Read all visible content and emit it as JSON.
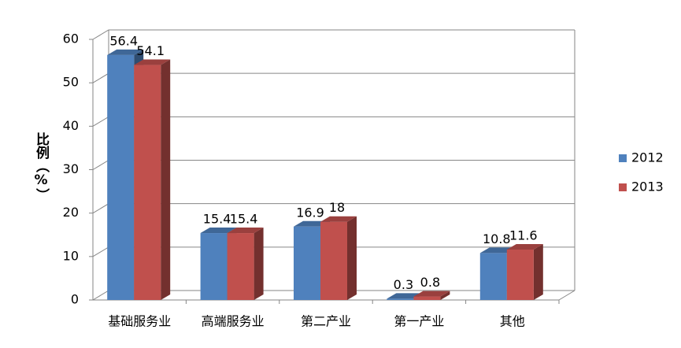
{
  "chart_data": {
    "type": "bar3d",
    "y_label": "比例（%）",
    "categories": [
      "基础服务业",
      "高端服务业",
      "第二产业",
      "第一产业",
      "其他"
    ],
    "series": [
      {
        "name": "2012",
        "color": "#4f81bd",
        "values": [
          56.4,
          15.4,
          16.9,
          0.3,
          10.8
        ]
      },
      {
        "name": "2013",
        "color": "#c0504d",
        "values": [
          54.1,
          15.4,
          18,
          0.8,
          11.6
        ]
      }
    ],
    "ylim": [
      0,
      60
    ],
    "yticks": [
      0,
      10,
      20,
      30,
      40,
      50,
      60
    ],
    "grid": true,
    "legend": "right"
  }
}
